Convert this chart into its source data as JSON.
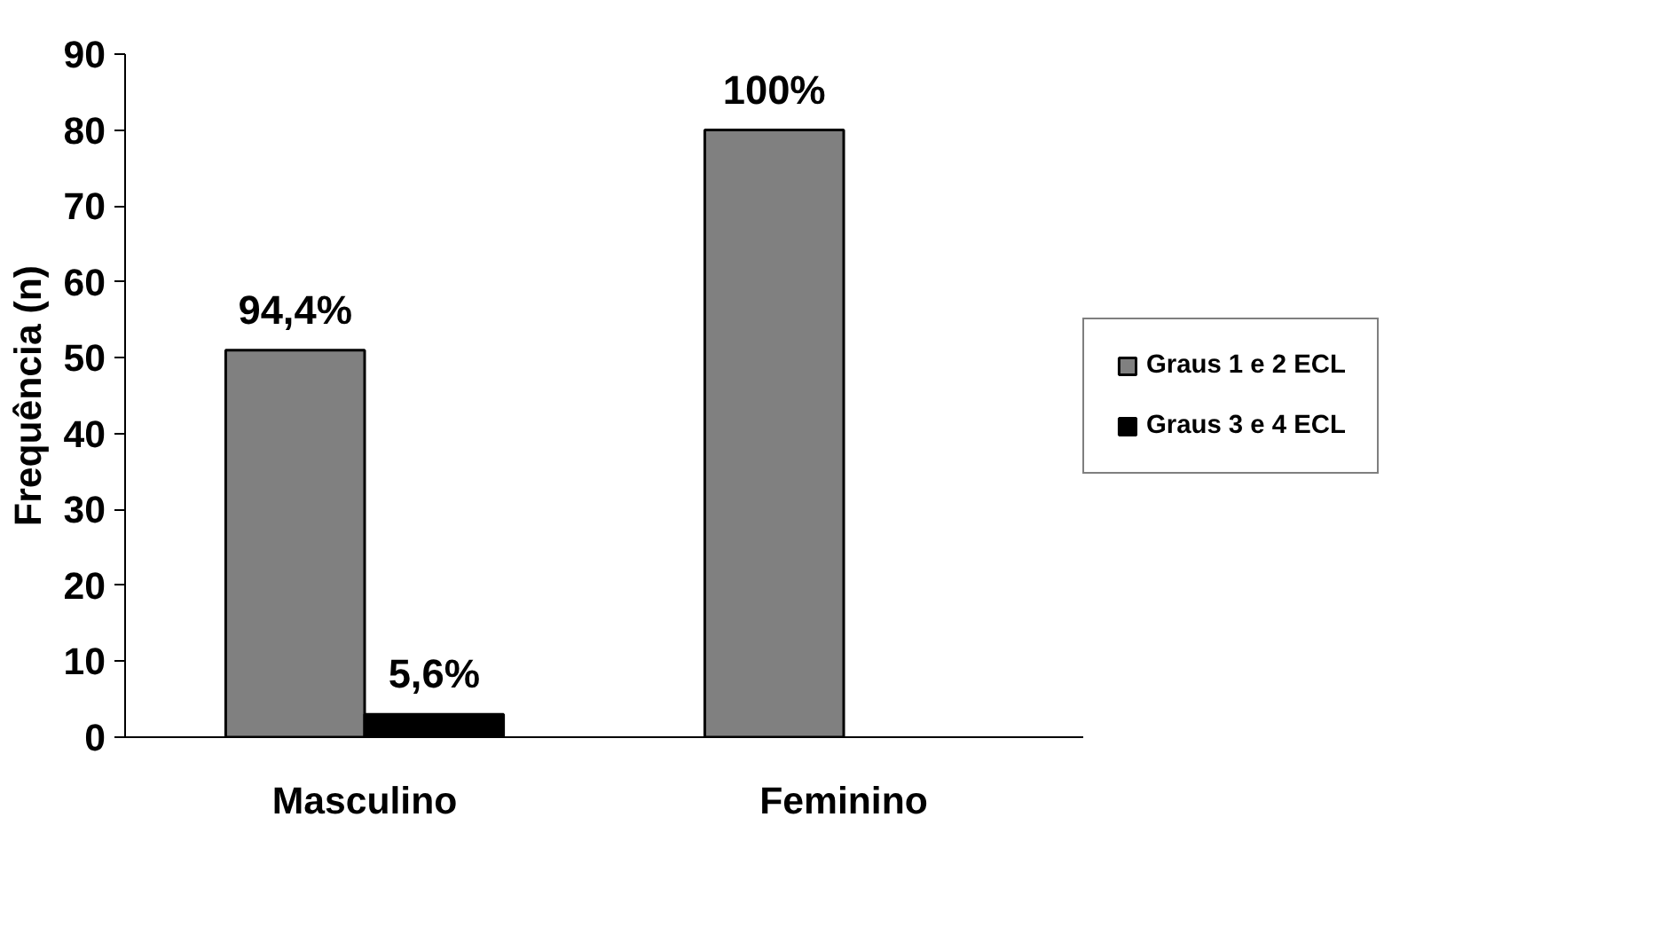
{
  "chart_data": {
    "type": "bar",
    "ylabel": "Frequência (n)",
    "categories": [
      "Masculino",
      "Feminino"
    ],
    "series": [
      {
        "name": "Graus 1 e 2 ECL",
        "color": "#808080",
        "values": [
          51,
          80
        ]
      },
      {
        "name": "Graus 3 e 4 ECL",
        "color": "#000000",
        "values": [
          3,
          null
        ]
      }
    ],
    "annotations": [
      {
        "text": "94,4%",
        "x": "Masculino",
        "y": 51
      },
      {
        "text": "5,6%",
        "x": "Masculino",
        "y": 3
      },
      {
        "text": "100%",
        "x": "Feminino",
        "y": 80
      }
    ],
    "ylim": [
      0,
      90
    ],
    "yticks": [
      0,
      10,
      20,
      30,
      40,
      50,
      60,
      70,
      80,
      90
    ],
    "grid": false,
    "legend": "right"
  }
}
